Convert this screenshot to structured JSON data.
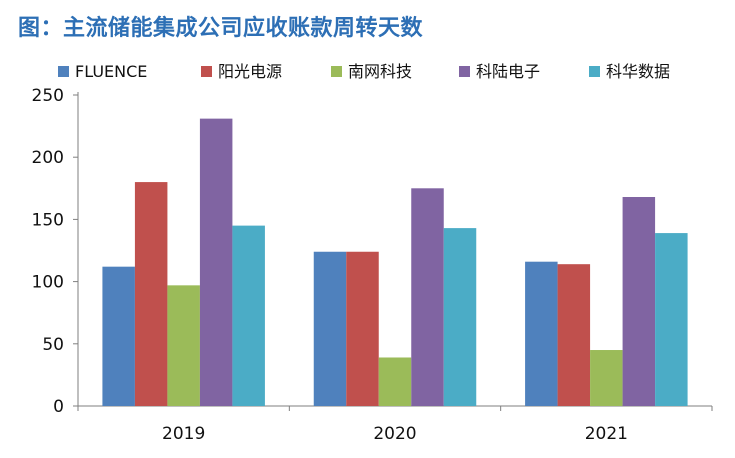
{
  "title": "图：主流储能集成公司应收账款周转天数",
  "colors": {
    "title": "#2d6fb5"
  },
  "chart_data": {
    "type": "bar",
    "categories": [
      "2019",
      "2020",
      "2021"
    ],
    "series": [
      {
        "name": "FLUENCE",
        "color": "#4f81bd",
        "values": [
          112,
          124,
          116
        ]
      },
      {
        "name": "阳光电源",
        "color": "#c0504d",
        "values": [
          180,
          124,
          114
        ]
      },
      {
        "name": "南网科技",
        "color": "#9bbb59",
        "values": [
          97,
          39,
          45
        ]
      },
      {
        "name": "科陆电子",
        "color": "#8064a2",
        "values": [
          231,
          175,
          168
        ]
      },
      {
        "name": "科华数据",
        "color": "#4bacc6",
        "values": [
          145,
          143,
          139
        ]
      }
    ],
    "yticks": [
      0,
      50,
      100,
      150,
      200,
      250
    ],
    "ylim": [
      0,
      250
    ],
    "grid": false,
    "legend_position": "top"
  }
}
